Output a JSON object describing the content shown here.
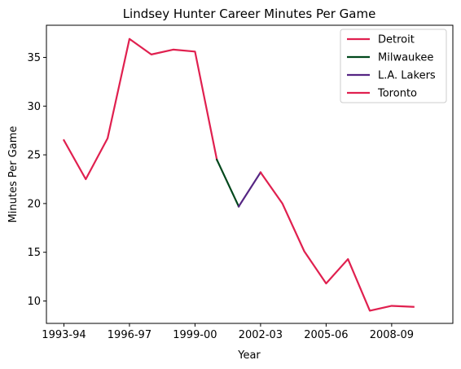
{
  "chart_data": {
    "type": "line",
    "title": "Lindsey Hunter Career Minutes Per Game",
    "xlabel": "Year",
    "ylabel": "Minutes Per Game",
    "xlim": [
      -0.8,
      17.8
    ],
    "ylim": [
      7.7,
      38.3
    ],
    "grid": false,
    "legend_position": "top-right",
    "x_tick_labels": [
      {
        "x": 0,
        "label": "1993-94"
      },
      {
        "x": 3,
        "label": "1996-97"
      },
      {
        "x": 6,
        "label": "1999-00"
      },
      {
        "x": 9,
        "label": "2002-03"
      },
      {
        "x": 12,
        "label": "2005-06"
      },
      {
        "x": 15,
        "label": "2008-09"
      }
    ],
    "y_ticks": [
      10,
      15,
      20,
      25,
      30,
      35
    ],
    "series": [
      {
        "name": "Detroit",
        "color": "#e0204f",
        "points": [
          {
            "x": 0,
            "y": 26.5
          },
          {
            "x": 1,
            "y": 22.5
          },
          {
            "x": 2,
            "y": 26.7
          },
          {
            "x": 3,
            "y": 36.9
          },
          {
            "x": 4,
            "y": 35.3
          },
          {
            "x": 5,
            "y": 35.8
          },
          {
            "x": 6,
            "y": 35.6
          },
          {
            "x": 7,
            "y": 24.5
          }
        ]
      },
      {
        "name": "Milwaukee",
        "color": "#00471b",
        "points": [
          {
            "x": 7,
            "y": 24.5
          },
          {
            "x": 8,
            "y": 19.7
          }
        ]
      },
      {
        "name": "L.A. Lakers",
        "color": "#552583",
        "points": [
          {
            "x": 8,
            "y": 19.7
          },
          {
            "x": 9,
            "y": 23.2
          }
        ]
      },
      {
        "name": "Toronto",
        "color": "#e0204f",
        "points": [
          {
            "x": 9,
            "y": 23.2
          },
          {
            "x": 10,
            "y": 20.0
          },
          {
            "x": 11,
            "y": 15.1
          },
          {
            "x": 12,
            "y": 11.8
          },
          {
            "x": 13,
            "y": 14.3
          },
          {
            "x": 14,
            "y": 9.0
          },
          {
            "x": 15,
            "y": 9.5
          },
          {
            "x": 16,
            "y": 9.4
          }
        ]
      }
    ]
  }
}
